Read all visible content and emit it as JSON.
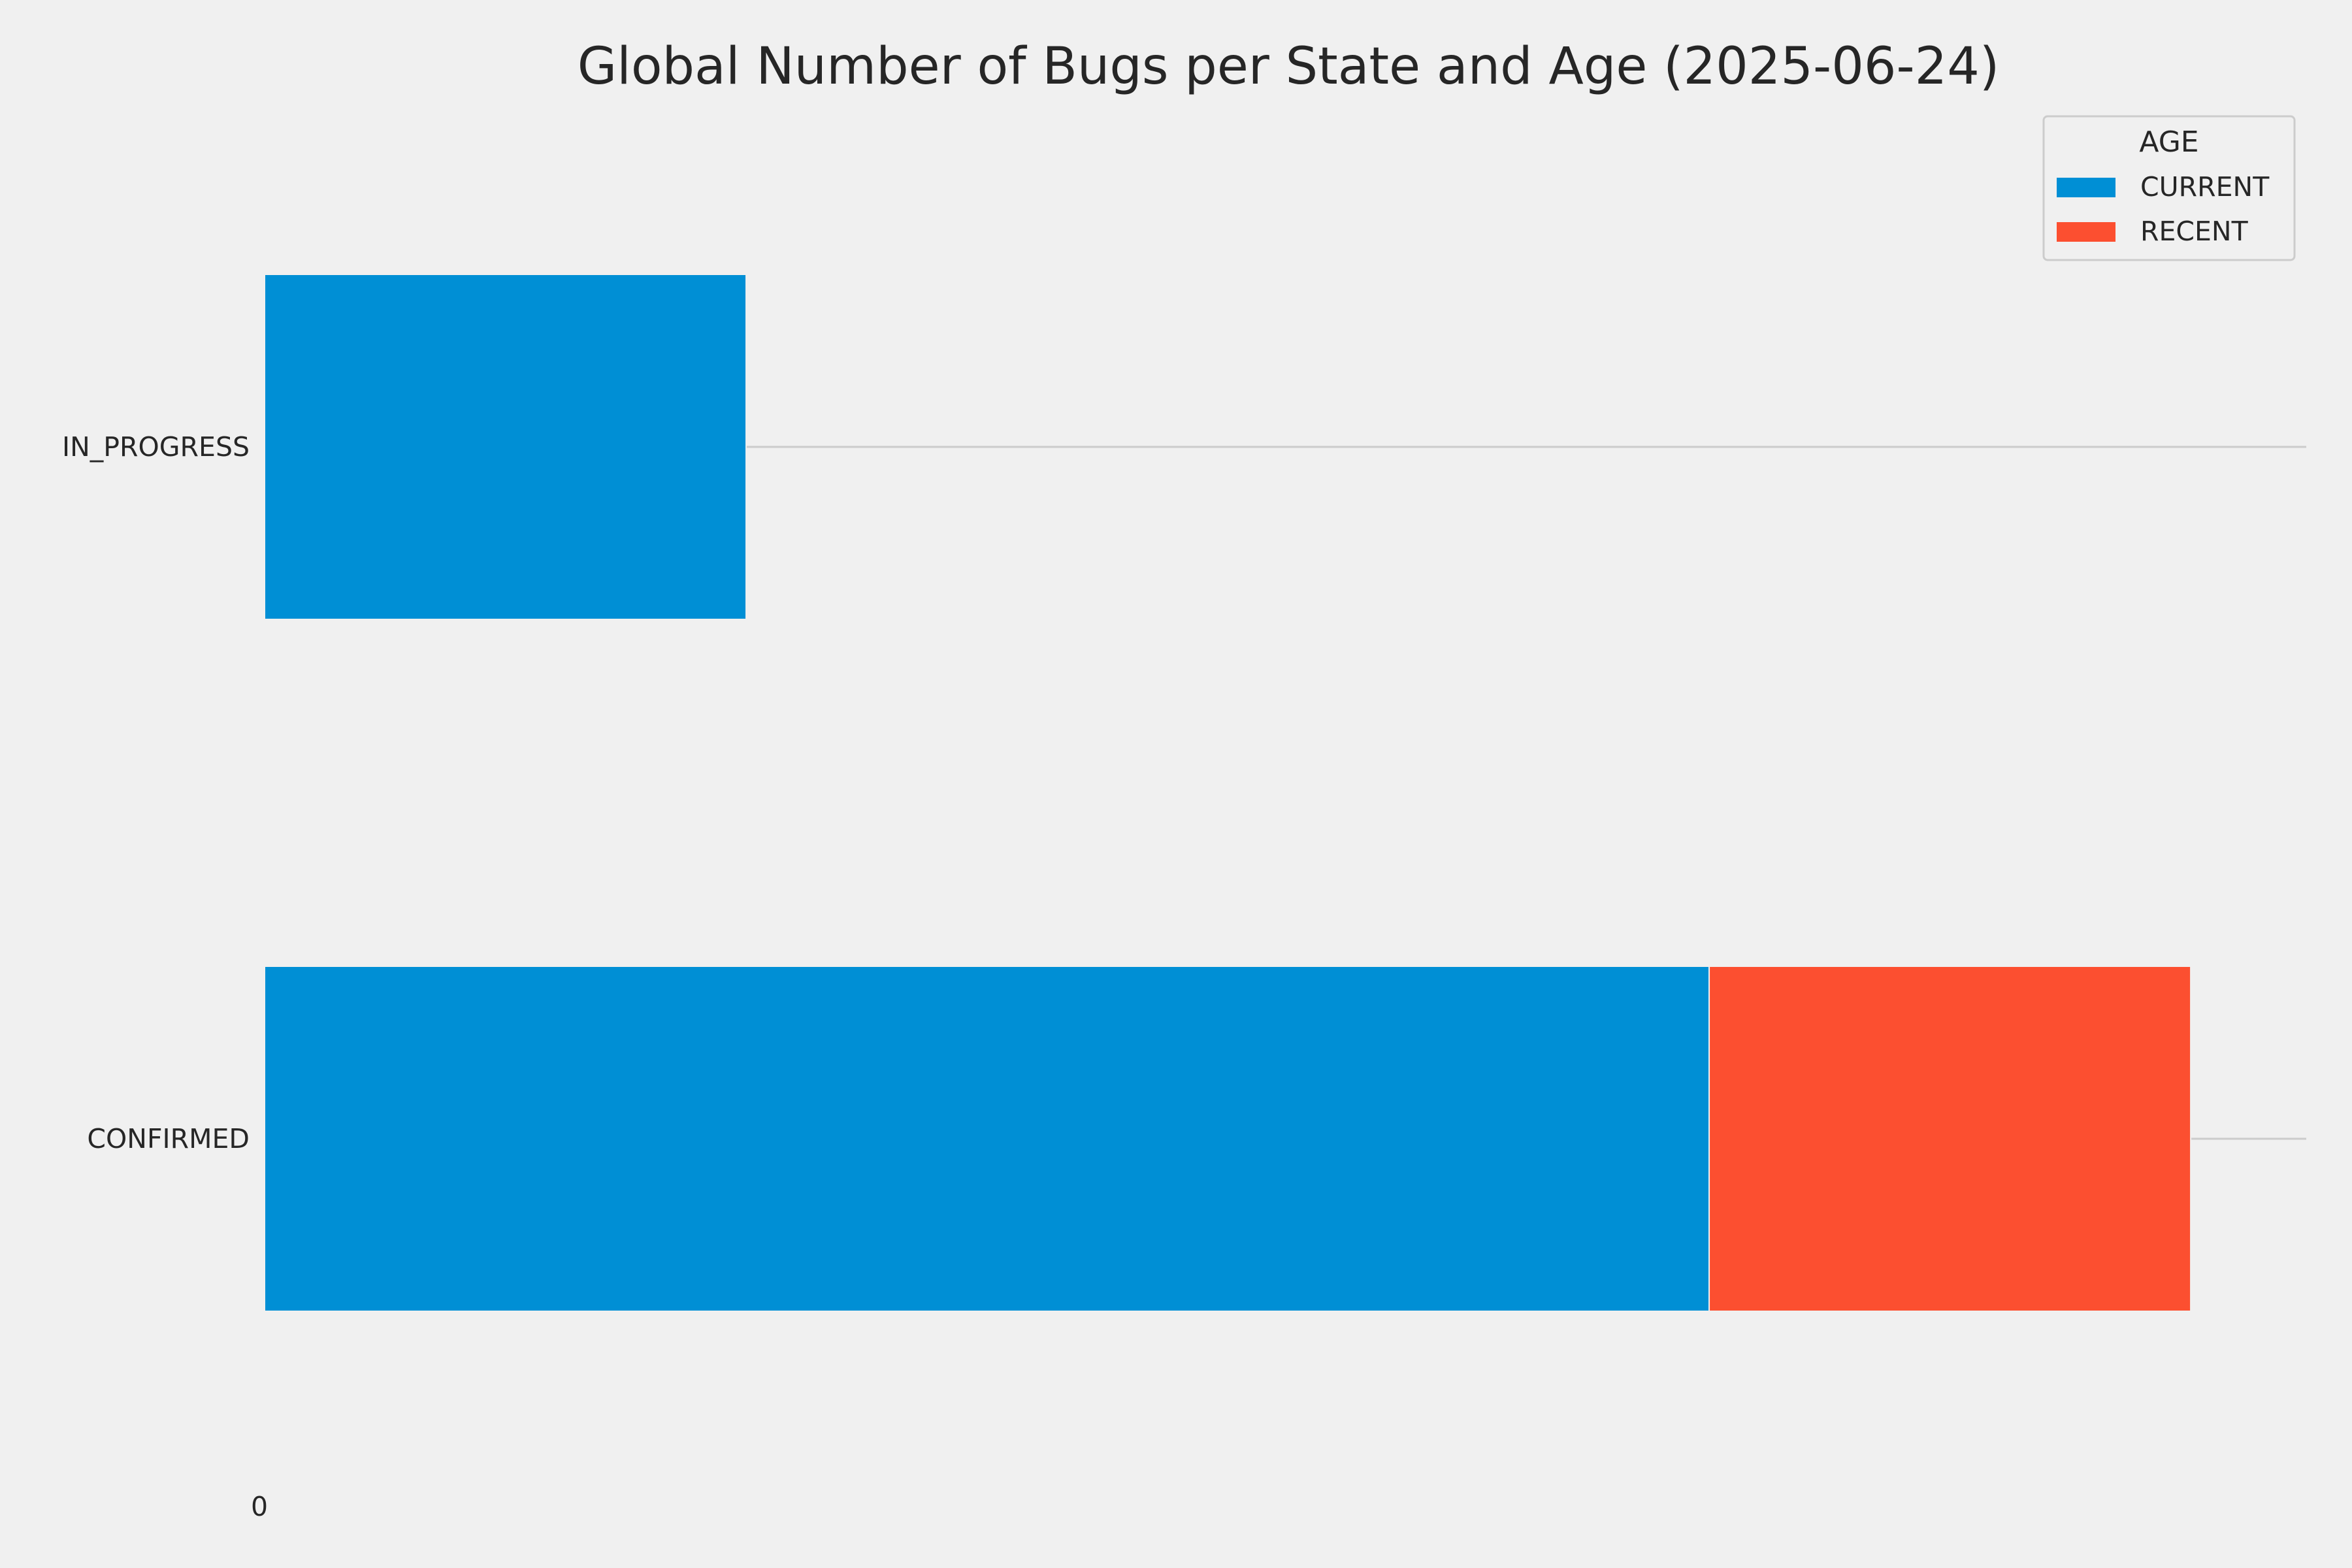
{
  "chart_data": {
    "type": "bar",
    "orientation": "horizontal",
    "stacked": true,
    "title": "Global Number of Bugs per State and Age (2025-06-24)",
    "xlabel": "",
    "ylabel": "",
    "categories": [
      "IN_PROGRESS",
      "CONFIRMED"
    ],
    "x_ticks": [
      "0"
    ],
    "xlim": [
      0,
      42.4
    ],
    "series": [
      {
        "name": "CURRENT",
        "color": "#008fd5",
        "values": [
          10,
          30
        ]
      },
      {
        "name": "RECENT",
        "color": "#fc4f30",
        "values": [
          0,
          10
        ]
      }
    ],
    "legend": {
      "title": "AGE",
      "position": "top-right"
    },
    "grid": true,
    "background": "#f0f0f0",
    "grid_color": "#cbcbcb"
  }
}
